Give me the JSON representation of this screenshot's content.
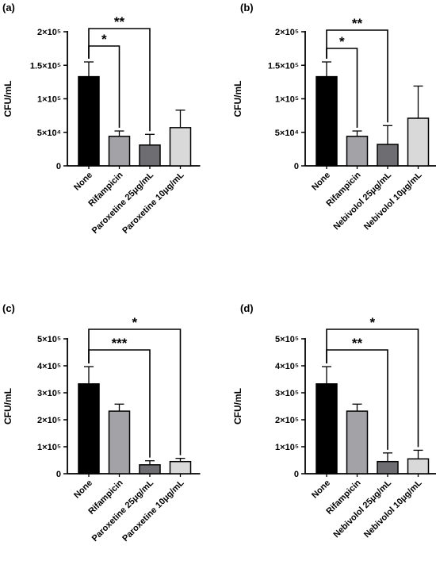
{
  "chart_data": [
    {
      "panel": "(a)",
      "type": "bar",
      "ylabel": "CFU/mL",
      "ylim": [
        0,
        200000
      ],
      "yticks": [
        {
          "value": 0,
          "label": "0"
        },
        {
          "value": 50000,
          "label": "5×10⁴"
        },
        {
          "value": 100000,
          "label": "1×10⁵"
        },
        {
          "value": 150000,
          "label": "1.5×10⁵"
        },
        {
          "value": 200000,
          "label": "2×10⁵"
        }
      ],
      "categories": [
        "None",
        "Rifampicin",
        "Paroxetine 25μg/mL",
        "Paroxetine 10μg/mL"
      ],
      "values": [
        133000,
        44000,
        31000,
        57000
      ],
      "errors": [
        22000,
        8000,
        16000,
        26000
      ],
      "bar_colors": [
        "#000000",
        "#a3a3a7",
        "#6e6e72",
        "#d9d9d9"
      ],
      "significance": [
        {
          "from": 0,
          "to": 1,
          "label": "*",
          "level": 1
        },
        {
          "from": 0,
          "to": 2,
          "label": "**",
          "level": 2
        }
      ]
    },
    {
      "panel": "(b)",
      "type": "bar",
      "ylabel": "CFU/mL",
      "ylim": [
        0,
        200000
      ],
      "yticks": [
        {
          "value": 0,
          "label": "0"
        },
        {
          "value": 50000,
          "label": "5×10⁴"
        },
        {
          "value": 100000,
          "label": "1×10⁵"
        },
        {
          "value": 150000,
          "label": "1.5×10⁵"
        },
        {
          "value": 200000,
          "label": "2×10⁵"
        }
      ],
      "categories": [
        "None",
        "Rifampicin",
        "Nebivolol 25μg/mL",
        "Nebivolol 10μg/mL"
      ],
      "values": [
        133000,
        44000,
        32000,
        71000
      ],
      "errors": [
        22000,
        8000,
        28000,
        48000
      ],
      "bar_colors": [
        "#000000",
        "#a3a3a7",
        "#6e6e72",
        "#d9d9d9"
      ],
      "significance": [
        {
          "from": 0,
          "to": 1,
          "label": "*",
          "level": 1
        },
        {
          "from": 0,
          "to": 2,
          "label": "**",
          "level": 2
        }
      ]
    },
    {
      "panel": "(c)",
      "type": "bar",
      "ylabel": "CFU/mL",
      "ylim": [
        0,
        500000
      ],
      "yticks": [
        {
          "value": 0,
          "label": "0"
        },
        {
          "value": 100000,
          "label": "1×10⁵"
        },
        {
          "value": 200000,
          "label": "2×10⁵"
        },
        {
          "value": 300000,
          "label": "3×10⁵"
        },
        {
          "value": 400000,
          "label": "4×10⁵"
        },
        {
          "value": 500000,
          "label": "5×10⁵"
        }
      ],
      "categories": [
        "None",
        "Rifampicin",
        "Paroxetine 25μg/mL",
        "Paroxetine 10μg/mL"
      ],
      "values": [
        333000,
        232000,
        33000,
        45000
      ],
      "errors": [
        64000,
        26000,
        15000,
        12000
      ],
      "bar_colors": [
        "#000000",
        "#a3a3a7",
        "#6e6e72",
        "#d9d9d9"
      ],
      "significance": [
        {
          "from": 0,
          "to": 2,
          "label": "***",
          "level": 1
        },
        {
          "from": 0,
          "to": 3,
          "label": "*",
          "level": 2
        }
      ]
    },
    {
      "panel": "(d)",
      "type": "bar",
      "ylabel": "CFU/mL",
      "ylim": [
        0,
        500000
      ],
      "yticks": [
        {
          "value": 0,
          "label": "0"
        },
        {
          "value": 100000,
          "label": "1×10⁵"
        },
        {
          "value": 200000,
          "label": "2×10⁵"
        },
        {
          "value": 300000,
          "label": "3×10⁵"
        },
        {
          "value": 400000,
          "label": "4×10⁵"
        },
        {
          "value": 500000,
          "label": "5×10⁵"
        }
      ],
      "categories": [
        "None",
        "Rifampicin",
        "Nebivolol 25μg/mL",
        "Nebivolol 10μg/mL"
      ],
      "values": [
        333000,
        232000,
        45000,
        55000
      ],
      "errors": [
        64000,
        26000,
        32000,
        32000
      ],
      "bar_colors": [
        "#000000",
        "#a3a3a7",
        "#6e6e72",
        "#d9d9d9"
      ],
      "significance": [
        {
          "from": 0,
          "to": 2,
          "label": "**",
          "level": 1
        },
        {
          "from": 0,
          "to": 3,
          "label": "*",
          "level": 2
        }
      ]
    }
  ]
}
